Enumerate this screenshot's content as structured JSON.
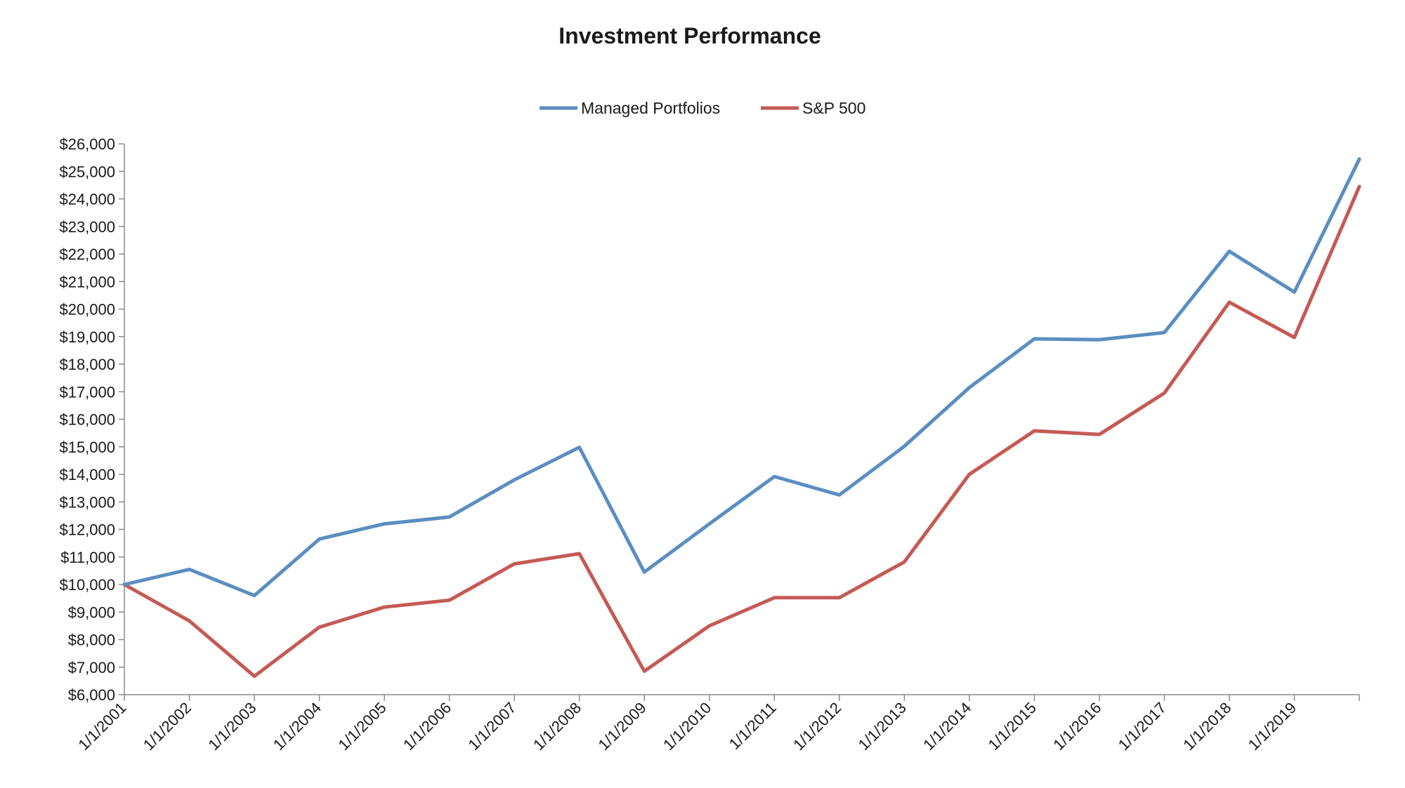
{
  "chart_data": {
    "type": "line",
    "title": "Investment Performance",
    "xlabel": "",
    "ylabel": "",
    "categories": [
      "1/1/2001",
      "1/1/2002",
      "1/1/2003",
      "1/1/2004",
      "1/1/2005",
      "1/1/2006",
      "1/1/2007",
      "1/1/2008",
      "1/1/2009",
      "1/1/2010",
      "1/1/2011",
      "1/1/2012",
      "1/1/2013",
      "1/1/2014",
      "1/1/2015",
      "1/1/2016",
      "1/1/2017",
      "1/1/2018",
      "1/1/2019",
      ""
    ],
    "ylim": [
      6000,
      26000
    ],
    "y_ticks": [
      6000,
      7000,
      8000,
      9000,
      10000,
      11000,
      12000,
      13000,
      14000,
      15000,
      16000,
      17000,
      18000,
      19000,
      20000,
      21000,
      22000,
      23000,
      24000,
      25000,
      26000
    ],
    "y_tick_labels": [
      "$6,000",
      "$7,000",
      "$8,000",
      "$9,000",
      "$10,000",
      "$11,000",
      "$12,000",
      "$13,000",
      "$14,000",
      "$15,000",
      "$16,000",
      "$17,000",
      "$18,000",
      "$19,000",
      "$20,000",
      "$21,000",
      "$22,000",
      "$23,000",
      "$24,000",
      "$25,000",
      "$26,000"
    ],
    "grid": false,
    "legend_position": "top-center",
    "series": [
      {
        "name": "Managed Portfolios",
        "color": "#5B8EC1",
        "values": [
          10000,
          10550,
          9600,
          11650,
          12200,
          12450,
          13800,
          14980,
          10450,
          12200,
          13920,
          13250,
          15020,
          17150,
          18920,
          18890,
          19150,
          22100,
          20620,
          25450
        ]
      },
      {
        "name": "S&P 500",
        "color": "#C55A55",
        "values": [
          10000,
          8680,
          6670,
          8450,
          9180,
          9430,
          10750,
          11120,
          6850,
          8500,
          9520,
          9520,
          10820,
          14000,
          15580,
          15450,
          16950,
          20250,
          18970,
          24450
        ]
      }
    ]
  }
}
